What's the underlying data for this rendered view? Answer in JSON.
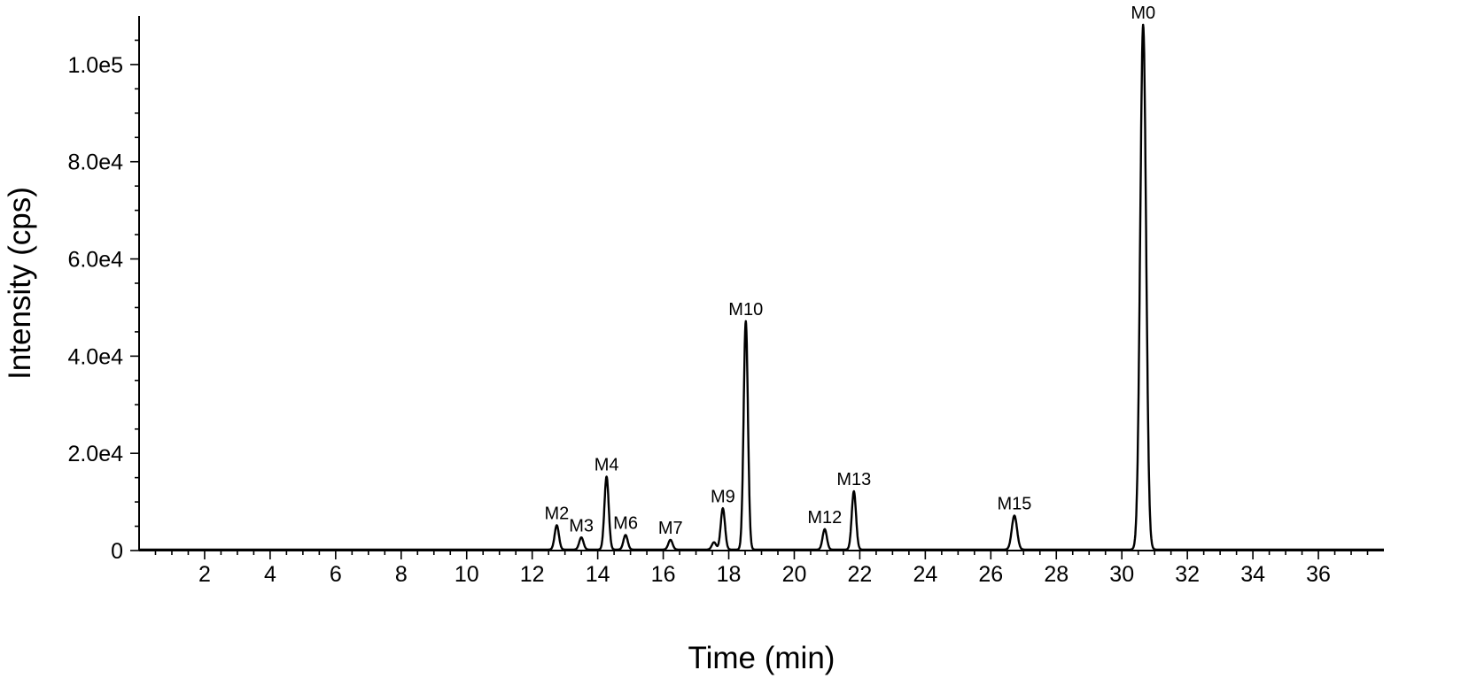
{
  "chart_data": {
    "type": "line",
    "xlabel": "Time (min)",
    "ylabel": "Intensity (cps)",
    "xlim": [
      0,
      38
    ],
    "ylim": [
      0,
      110000
    ],
    "x_ticks": [
      2,
      4,
      6,
      8,
      10,
      12,
      14,
      16,
      18,
      20,
      22,
      24,
      26,
      28,
      30,
      32,
      34,
      36
    ],
    "x_tick_labels": [
      "2",
      "4",
      "6",
      "8",
      "10",
      "12",
      "14",
      "16",
      "18",
      "20",
      "22",
      "24",
      "26",
      "28",
      "30",
      "32",
      "34",
      "36"
    ],
    "y_ticks": [
      0,
      20000,
      40000,
      60000,
      80000,
      100000
    ],
    "y_tick_labels": [
      "0",
      "2.0e4",
      "4.0e4",
      "6.0e4",
      "8.0e4",
      "1.0e5"
    ],
    "grid": false,
    "legend": false,
    "baseline": 200,
    "series": [
      {
        "peaks": [
          {
            "label": "M2",
            "time": 12.75,
            "intensity": 5000
          },
          {
            "label": "M3",
            "time": 13.5,
            "intensity": 2500
          },
          {
            "label": "M4",
            "time": 14.27,
            "intensity": 15000
          },
          {
            "label": "M6",
            "time": 14.85,
            "intensity": 3000
          },
          {
            "label": "M7",
            "time": 16.22,
            "intensity": 2000
          },
          {
            "label": "",
            "time": 17.55,
            "intensity": 1500
          },
          {
            "label": "M9",
            "time": 17.82,
            "intensity": 8500
          },
          {
            "label": "M10",
            "time": 18.52,
            "intensity": 47000
          },
          {
            "label": "M12",
            "time": 20.93,
            "intensity": 4200
          },
          {
            "label": "M13",
            "time": 21.82,
            "intensity": 12000
          },
          {
            "label": "M15",
            "time": 26.72,
            "intensity": 7000
          },
          {
            "label": "M0",
            "time": 30.65,
            "intensity": 108000
          }
        ]
      }
    ]
  }
}
